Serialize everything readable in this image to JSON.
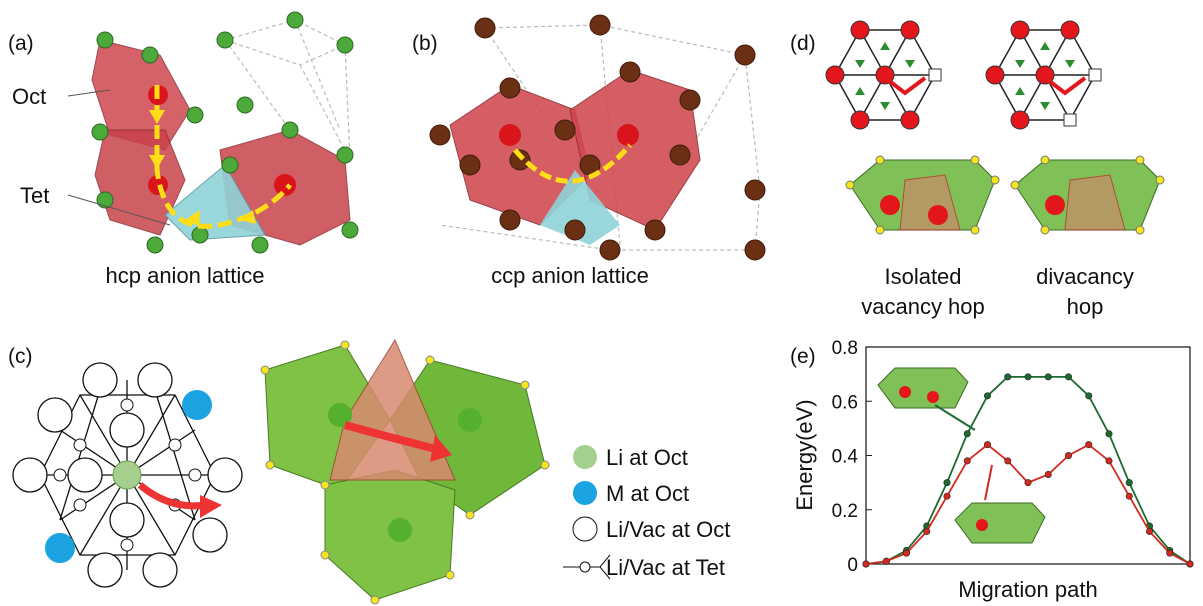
{
  "panels": {
    "a": {
      "label": "(a)",
      "oct": "Oct",
      "tet": "Tet",
      "caption": "hcp anion lattice"
    },
    "b": {
      "label": "(b)",
      "caption": "ccp anion lattice"
    },
    "c": {
      "label": "(c)",
      "legend": [
        "Li at Oct",
        "M at Oct",
        "Li/Vac at Oct",
        "Li/Vac at Tet"
      ]
    },
    "d": {
      "label": "(d)",
      "captions": [
        [
          "Isolated",
          "vacancy hop"
        ],
        [
          "divacancy",
          "hop"
        ]
      ]
    },
    "e": {
      "label": "(e)"
    }
  },
  "chart_data": {
    "type": "line",
    "x_label": "Migration path",
    "y_label": "Energy(eV)",
    "categories": [
      null,
      null,
      null,
      null,
      null,
      null,
      null,
      null,
      null,
      null,
      null,
      null,
      null,
      null,
      null,
      null,
      null
    ],
    "series": [
      {
        "color": "#1e6b32",
        "values": [
          0,
          0.01,
          0.05,
          0.14,
          0.3,
          0.48,
          0.62,
          0.69,
          0.69,
          0.69,
          0.69,
          0.62,
          0.48,
          0.3,
          0.14,
          0.05,
          0
        ]
      },
      {
        "color": "#d42a1f",
        "values": [
          0,
          0.01,
          0.04,
          0.12,
          0.25,
          0.38,
          0.44,
          0.38,
          0.3,
          0.33,
          0.4,
          0.44,
          0.38,
          0.25,
          0.12,
          0.04,
          0
        ]
      }
    ],
    "ylim": [
      0,
      0.8
    ],
    "yticks": [
      0,
      0.2,
      0.4,
      0.6,
      0.8
    ]
  }
}
